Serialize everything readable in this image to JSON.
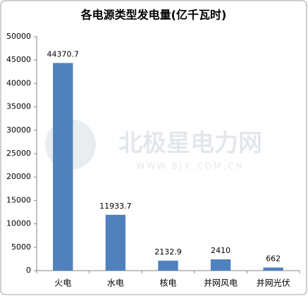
{
  "chart_data": {
    "type": "bar",
    "title": "各电源类型发电量(亿千瓦时)",
    "categories": [
      "火电",
      "水电",
      "核电",
      "并网风电",
      "并网光伏"
    ],
    "values": [
      44370.7,
      11933.7,
      2132.9,
      2410,
      662
    ],
    "color": "#4f81bd",
    "ylim": [
      0,
      50000
    ],
    "yticks": [
      0,
      5000,
      10000,
      15000,
      20000,
      25000,
      30000,
      35000,
      40000,
      45000,
      50000
    ],
    "grid": false,
    "watermark": [
      "北极星电力网",
      "WWW.BJX.COM.CN"
    ]
  }
}
